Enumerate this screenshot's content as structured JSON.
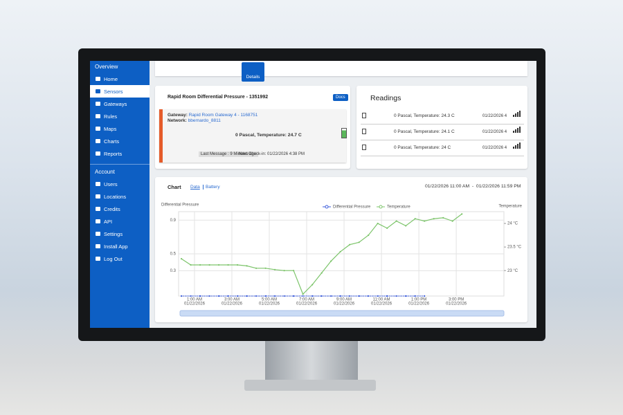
{
  "sidebar": {
    "overview_title": "Overview",
    "overview_items": [
      "Home",
      "Sensors",
      "Gateways",
      "Rules",
      "Maps",
      "Charts",
      "Reports"
    ],
    "account_title": "Account",
    "account_items": [
      "Users",
      "Locations",
      "Credits",
      "API",
      "Settings",
      "Install App",
      "Log Out"
    ]
  },
  "tabs": {
    "active": "Details"
  },
  "sensor_card": {
    "title": "Rapid Room Differential Pressure - 1351992",
    "docs_button": "Docs",
    "gateway_label": "Gateway:",
    "gateway": "Rapid Room Gateway 4 - 1168751",
    "network_label": "Network:",
    "network": "bbernardo_8811",
    "reading": "0 Pascal, Temperature: 24.7 C",
    "last_message": "Last Message : 9 Minutes ago",
    "next_checkin": "Next Check-in: 01/22/2026   4:38 PM"
  },
  "readings": {
    "title": "Readings",
    "rows": [
      {
        "reading": "0 Pascal, Temperature: 24.3 C",
        "date": "01/22/2026 4"
      },
      {
        "reading": "0 Pascal, Temperature: 24.1 C",
        "date": "01/22/2026 4"
      },
      {
        "reading": "0 Pascal, Temperature: 24 C",
        "date": "01/22/2026 4"
      }
    ]
  },
  "chart_card": {
    "title": "Chart",
    "link_data": "Data",
    "link_battery": "Battery",
    "date_range": "01/22/2026 11:00 AM  -  01/22/2026 11:59 PM"
  },
  "chart_data": {
    "type": "line",
    "y_label": "Differential Pressure",
    "y2_label": "Temperature",
    "x_tick_date": "01/22/2026",
    "x": [
      0.3,
      0.8,
      1.3,
      1.8,
      2.3,
      2.8,
      3.3,
      3.8,
      4.3,
      4.8,
      5.3,
      5.8,
      6.3,
      6.8,
      7.3,
      7.8,
      8.3,
      8.8,
      9.3,
      9.8,
      10.3,
      10.8,
      11.3,
      11.8,
      12.3,
      12.8,
      13.3,
      13.8,
      14.3,
      14.8,
      15.3
    ],
    "xlim": [
      0.15,
      17.55
    ],
    "xticks": [
      {
        "value": 1,
        "label": "1:00 AM"
      },
      {
        "value": 3,
        "label": "3:00 AM"
      },
      {
        "value": 5,
        "label": "5:00 AM"
      },
      {
        "value": 7,
        "label": "7:00 AM"
      },
      {
        "value": 9,
        "label": "9:00 AM"
      },
      {
        "value": 11,
        "label": "11:00 AM"
      },
      {
        "value": 13,
        "label": "1:00 PM"
      },
      {
        "value": 15,
        "label": "3:00 PM"
      }
    ],
    "ylim": [
      0,
      1
    ],
    "yticks": [
      0.3,
      0.5,
      0.9
    ],
    "y2lim": [
      22.46,
      24.25
    ],
    "y2ticks": [
      {
        "value": 23,
        "label": "23 °C"
      },
      {
        "value": 23.5,
        "label": "23.5 °C"
      },
      {
        "value": 24,
        "label": "24 °C"
      }
    ],
    "grid": true,
    "series": [
      {
        "name": "Differential Pressure",
        "color": "#3b5bdb",
        "values": [
          0,
          0,
          0,
          0,
          0,
          0,
          0,
          0,
          0,
          0,
          0,
          0,
          0,
          0,
          0,
          0,
          0,
          0,
          0,
          0,
          0,
          0,
          0,
          0,
          0,
          0,
          0,
          null,
          null,
          null,
          null
        ]
      },
      {
        "name": "Temperature",
        "color": "#7cc46a",
        "axis": "y2",
        "values": [
          23.25,
          23.12,
          23.12,
          23.12,
          23.12,
          23.12,
          23.12,
          23.1,
          23.05,
          23.05,
          23.02,
          23.0,
          23.0,
          22.5,
          22.7,
          22.95,
          23.2,
          23.4,
          23.55,
          23.6,
          23.75,
          24.0,
          23.9,
          24.05,
          23.95,
          24.1,
          24.05,
          24.1,
          24.12,
          24.05,
          24.2
        ]
      }
    ]
  }
}
